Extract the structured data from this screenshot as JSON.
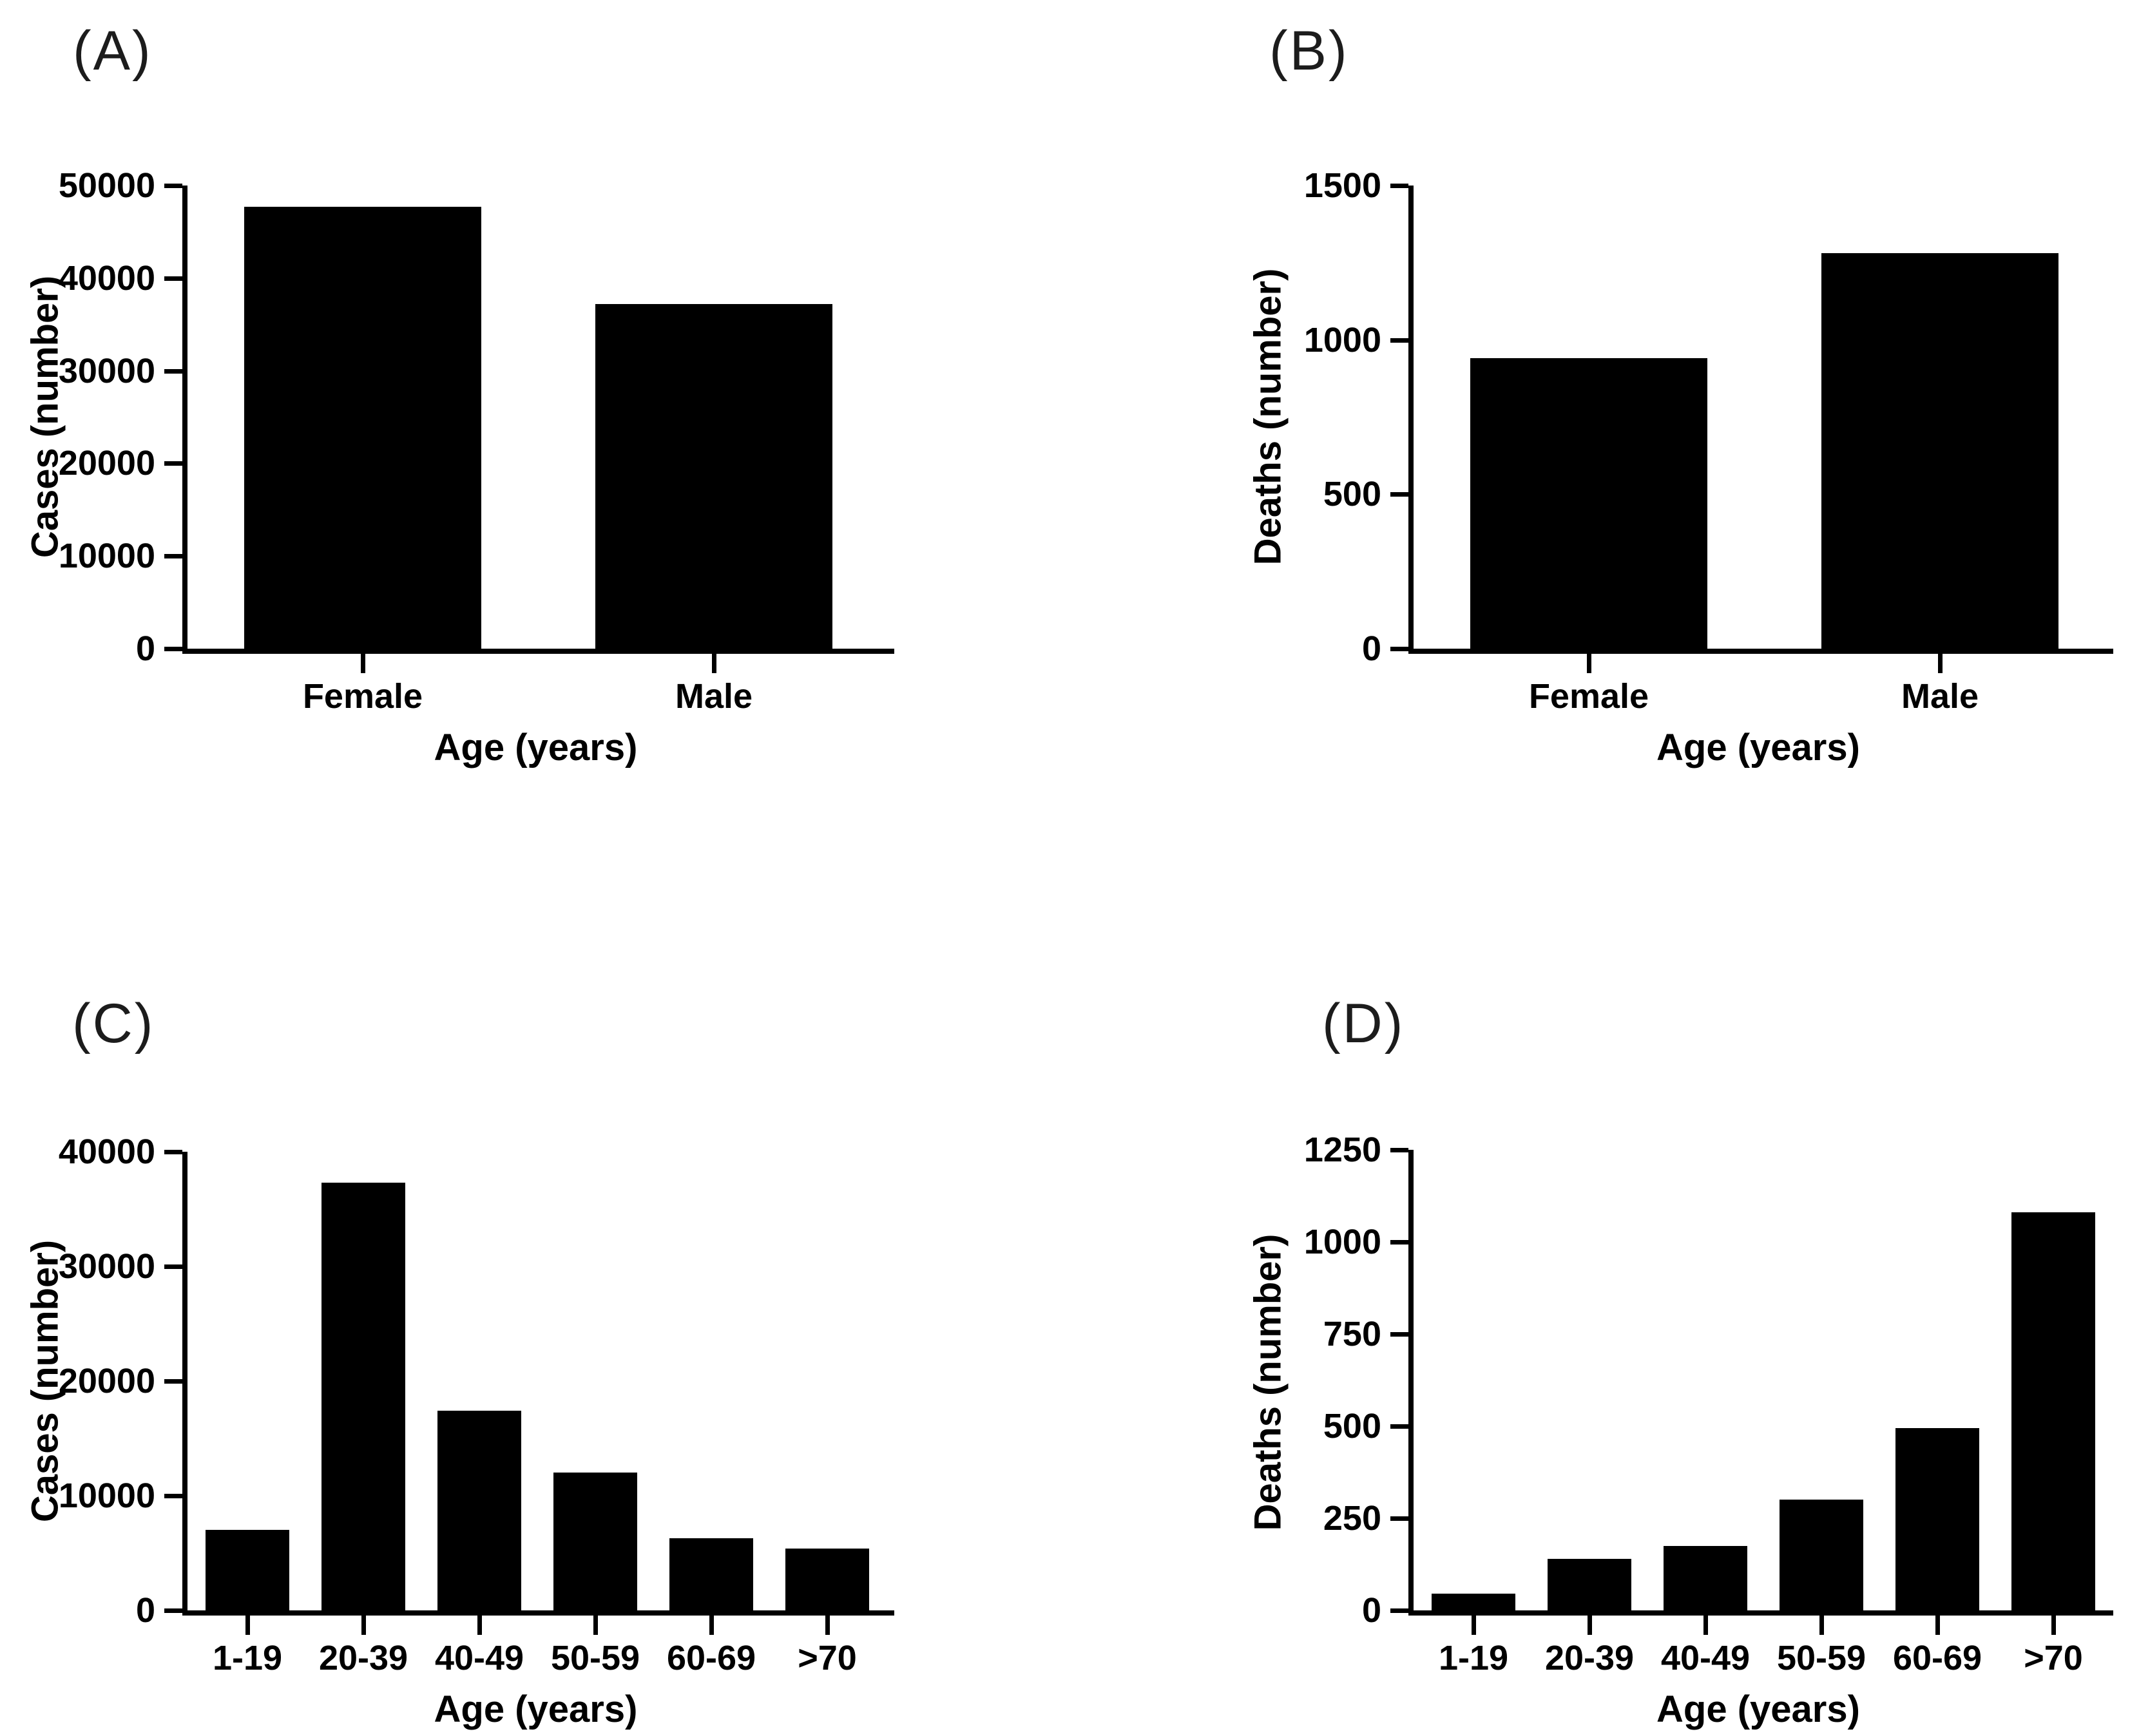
{
  "colors": {
    "background": "#ffffff",
    "bar": "#000000",
    "axis": "#000000",
    "text": "#000000"
  },
  "chart_data": [
    {
      "type": "bar",
      "panel_label": "(A)",
      "title": "(A)",
      "categories": [
        "Female",
        "Male"
      ],
      "values": [
        47700,
        37200
      ],
      "ylabel": "Cases (number)",
      "xlabel": "Age (years)",
      "yticks": [
        0,
        10000,
        20000,
        30000,
        40000,
        50000
      ],
      "ylim": [
        0,
        50000
      ],
      "grid": false,
      "legend": "none"
    },
    {
      "type": "bar",
      "panel_label": "(B)",
      "title": "(B)",
      "categories": [
        "Female",
        "Male"
      ],
      "values": [
        940,
        1280
      ],
      "ylabel": "Deaths (number)",
      "xlabel": "Age (years)",
      "yticks": [
        0,
        500,
        1000,
        1500
      ],
      "ylim": [
        0,
        1500
      ],
      "grid": false,
      "legend": "none"
    },
    {
      "type": "bar",
      "panel_label": "(C)",
      "title": "(C)",
      "categories": [
        "1-19",
        "20-39",
        "40-49",
        "50-59",
        "60-69",
        ">70"
      ],
      "values": [
        7000,
        37300,
        17400,
        12000,
        6300,
        5400
      ],
      "ylabel": "Cases (number)",
      "xlabel": "Age (years)",
      "yticks": [
        0,
        10000,
        20000,
        30000,
        40000
      ],
      "ylim": [
        0,
        40000
      ],
      "grid": false,
      "legend": "none"
    },
    {
      "type": "bar",
      "panel_label": "(D)",
      "title": "(D)",
      "categories": [
        "1-19",
        "20-39",
        "40-49",
        "50-59",
        "60-69",
        ">70"
      ],
      "values": [
        45,
        140,
        175,
        300,
        495,
        1080
      ],
      "ylabel": "Deaths (number)",
      "xlabel": "Age (years)",
      "yticks": [
        0,
        250,
        500,
        750,
        1000,
        1250
      ],
      "ylim": [
        0,
        1250
      ],
      "grid": false,
      "legend": "none"
    }
  ]
}
